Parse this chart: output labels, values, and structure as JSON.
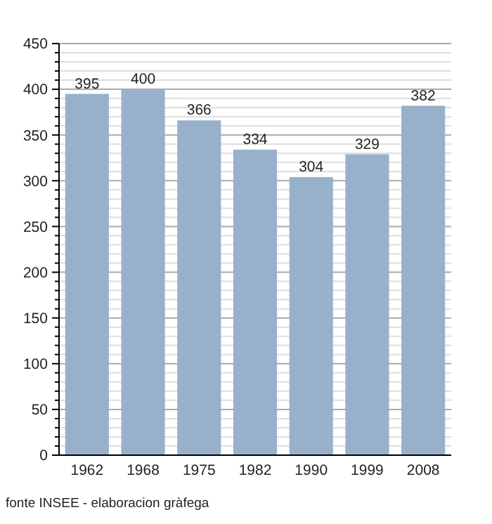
{
  "chart_data": {
    "type": "bar",
    "categories": [
      "1962",
      "1968",
      "1975",
      "1982",
      "1990",
      "1999",
      "2008"
    ],
    "values": [
      395,
      400,
      366,
      334,
      304,
      329,
      382
    ],
    "color": "#98b1cb",
    "ylim": [
      0,
      450
    ],
    "yticks": [
      0,
      50,
      100,
      150,
      200,
      250,
      300,
      350,
      400,
      450
    ],
    "grid": "y",
    "data_labels": true,
    "annotations": [
      "fonte INSEE - elaboracion gràfega"
    ]
  }
}
